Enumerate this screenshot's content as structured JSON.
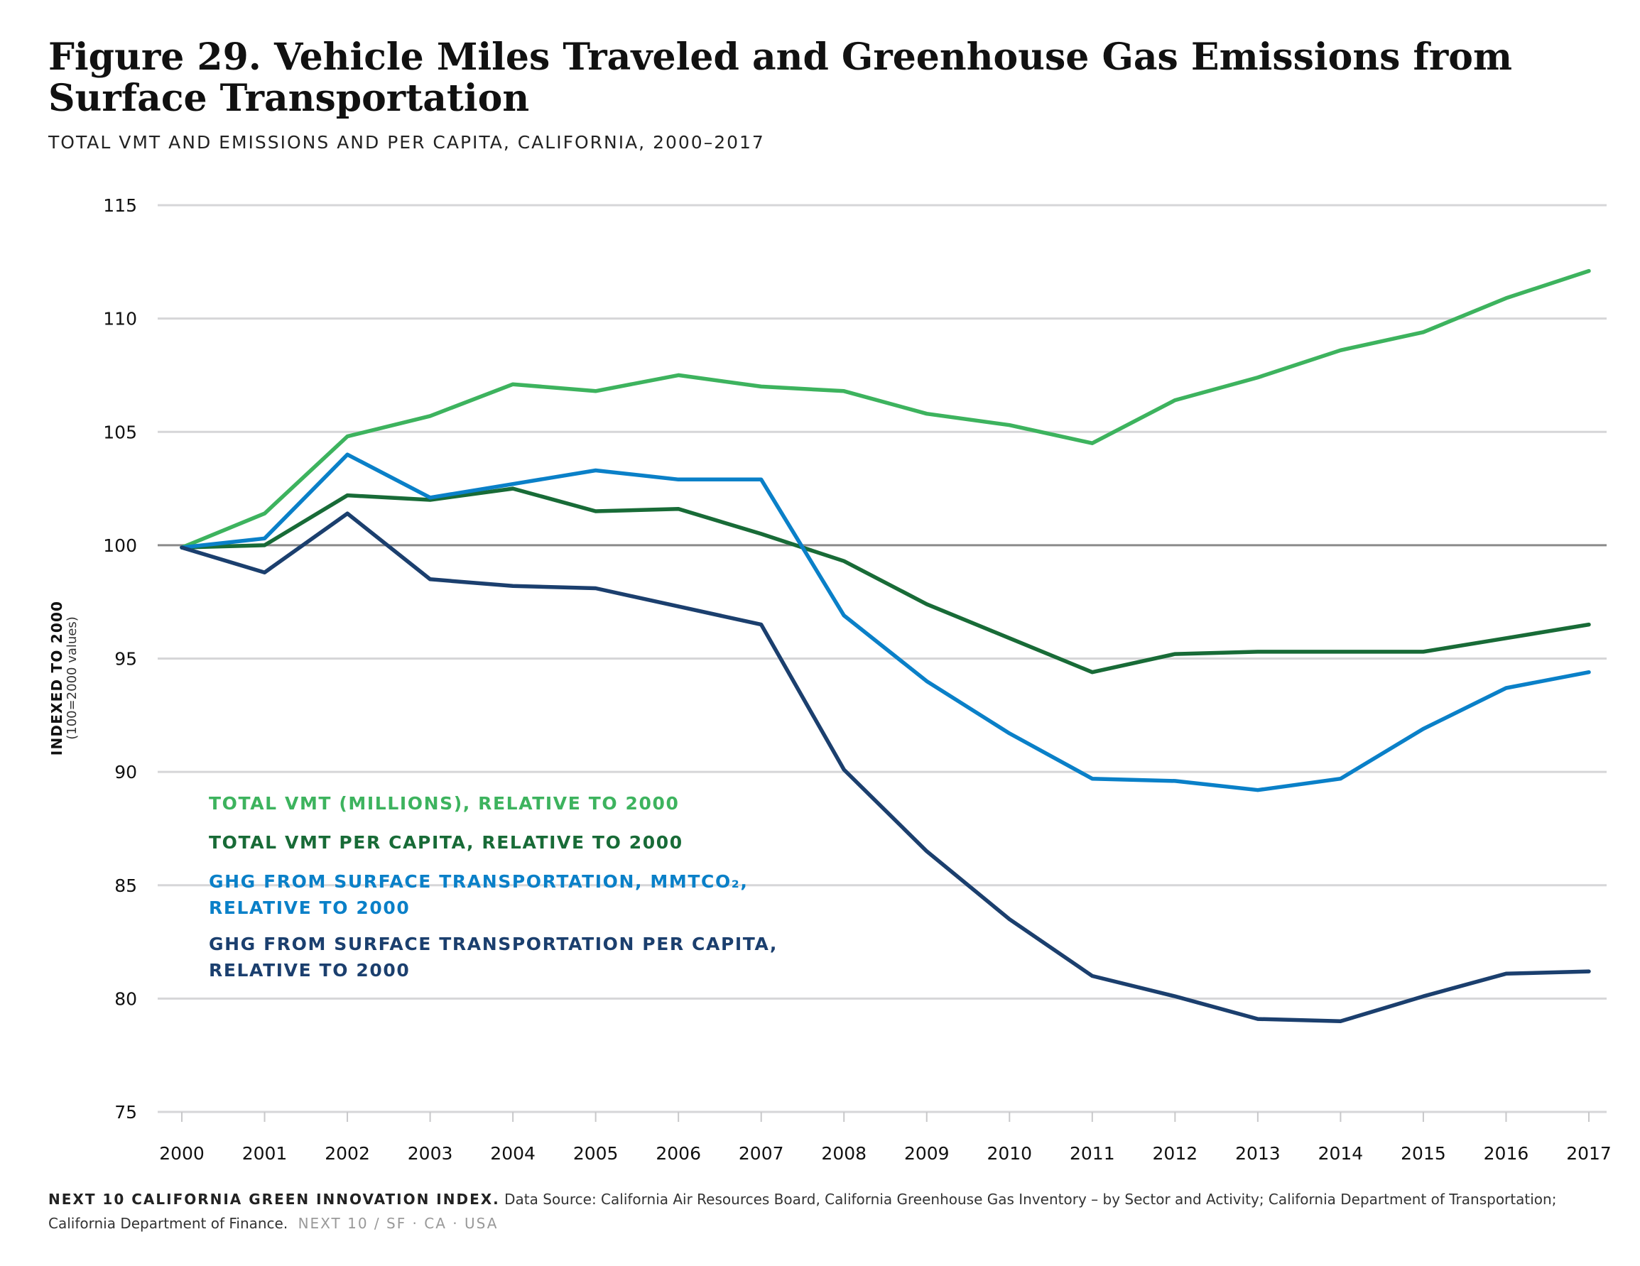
{
  "header": {
    "title_line1": "Figure 29. Vehicle Miles Traveled and Greenhouse Gas Emissions from",
    "title_line2": "Surface Transportation",
    "subtitle": "TOTAL VMT AND EMISSIONS AND PER CAPITA, CALIFORNIA, 2000–2017"
  },
  "footer": {
    "label": "NEXT 10 CALIFORNIA GREEN INNOVATION INDEX.",
    "source": "Data Source: California Air Resources Board, California Greenhouse Gas Inventory – by Sector and Activity; California Department of Transportation; California Department of Finance.",
    "brand": "NEXT 10  /  SF · CA · USA"
  },
  "chart_data": {
    "type": "line",
    "ylabel": "INDEXED TO 2000",
    "ylabel_sub": "(100=2000 values)",
    "xlabel": "",
    "ylim": [
      75,
      115
    ],
    "yticks": [
      75,
      80,
      85,
      90,
      95,
      100,
      105,
      110,
      115
    ],
    "reference_line": 100,
    "grid": true,
    "legend_placement": "bottom-left",
    "x": [
      "2000",
      "2001",
      "2002",
      "2003",
      "2004",
      "2005",
      "2006",
      "2007",
      "2008",
      "2009",
      "2010",
      "2011",
      "2012",
      "2013",
      "2014",
      "2015",
      "2016",
      "2017"
    ],
    "series": [
      {
        "name": "TOTAL VMT (MILLIONS), RELATIVE TO 2000",
        "color": "#3db35e",
        "values": [
          99.9,
          101.4,
          104.8,
          105.7,
          107.1,
          106.8,
          107.5,
          107.0,
          106.8,
          105.8,
          105.3,
          104.5,
          106.4,
          107.4,
          108.6,
          109.4,
          110.9,
          112.1
        ]
      },
      {
        "name": "TOTAL VMT PER CAPITA, RELATIVE TO 2000",
        "color": "#186b37",
        "values": [
          99.9,
          100.0,
          102.2,
          102.0,
          102.5,
          101.5,
          101.6,
          100.5,
          99.3,
          97.4,
          95.9,
          94.4,
          95.2,
          95.3,
          95.3,
          95.3,
          95.9,
          96.5
        ]
      },
      {
        "name": "GHG FROM SURFACE TRANSPORTATION, MMTCO₂, RELATIVE TO 2000",
        "color": "#0a80c8",
        "values": [
          99.9,
          100.3,
          104.0,
          102.1,
          102.7,
          103.3,
          102.9,
          102.9,
          96.9,
          94.0,
          91.7,
          89.7,
          89.6,
          89.2,
          89.7,
          91.9,
          93.7,
          94.4
        ]
      },
      {
        "name": "GHG FROM SURFACE TRANSPORTATION PER CAPITA, RELATIVE TO 2000",
        "color": "#1b3f6e",
        "values": [
          99.9,
          98.8,
          101.4,
          98.5,
          98.2,
          98.1,
          97.3,
          96.5,
          90.1,
          86.5,
          83.5,
          81.0,
          80.1,
          79.1,
          79.0,
          80.1,
          81.1,
          81.2
        ]
      }
    ],
    "legend": [
      {
        "lines": [
          "TOTAL VMT (MILLIONS), RELATIVE TO 2000"
        ],
        "color": "#3db35e"
      },
      {
        "lines": [
          "TOTAL VMT PER CAPITA, RELATIVE TO 2000"
        ],
        "color": "#186b37"
      },
      {
        "lines": [
          "GHG FROM SURFACE TRANSPORTATION, MMTCO₂,",
          "RELATIVE TO 2000"
        ],
        "color": "#0a80c8"
      },
      {
        "lines": [
          "GHG FROM SURFACE TRANSPORTATION PER CAPITA,",
          "RELATIVE TO 2000"
        ],
        "color": "#1b3f6e"
      }
    ]
  }
}
